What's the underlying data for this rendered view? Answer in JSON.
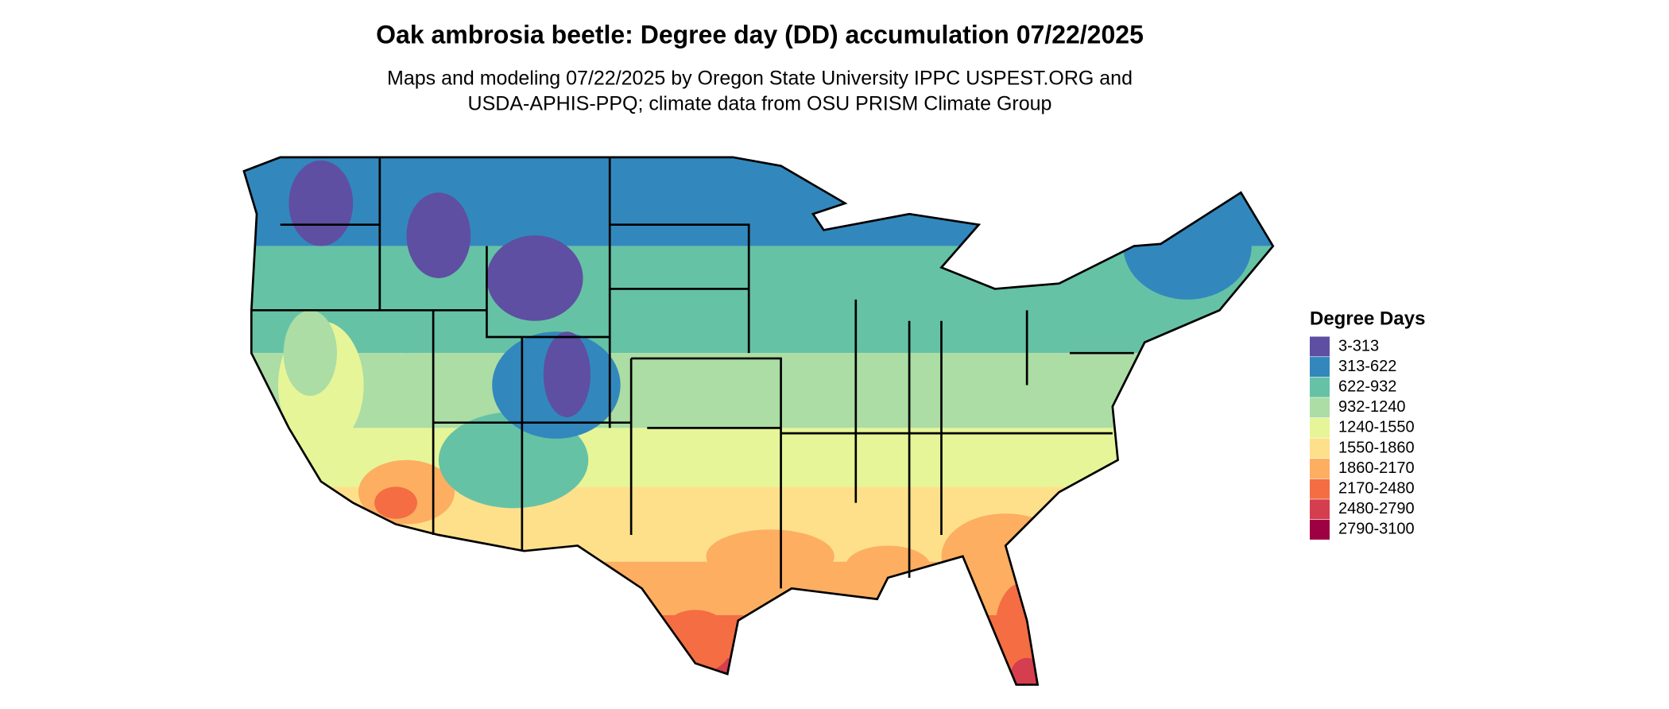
{
  "title": "Oak ambrosia beetle: Degree day (DD) accumulation 07/22/2025",
  "subtitle": [
    "Maps and modeling 07/22/2025 by Oregon State University IPPC USPEST.ORG and",
    "USDA-APHIS-PPQ; climate data from OSU PRISM Climate Group"
  ],
  "legend": {
    "title": "Degree Days",
    "items": [
      {
        "label": "3-313",
        "color": "#5e4fa2"
      },
      {
        "label": "313-622",
        "color": "#3288bd"
      },
      {
        "label": "622-932",
        "color": "#66c2a5"
      },
      {
        "label": "932-1240",
        "color": "#abdda4"
      },
      {
        "label": "1240-1550",
        "color": "#e6f598"
      },
      {
        "label": "1550-1860",
        "color": "#fee08b"
      },
      {
        "label": "1860-2170",
        "color": "#fdae61"
      },
      {
        "label": "2170-2480",
        "color": "#f46d43"
      },
      {
        "label": "2480-2790",
        "color": "#d53e4f"
      },
      {
        "label": "2790-3100",
        "color": "#9e0142"
      }
    ]
  }
}
